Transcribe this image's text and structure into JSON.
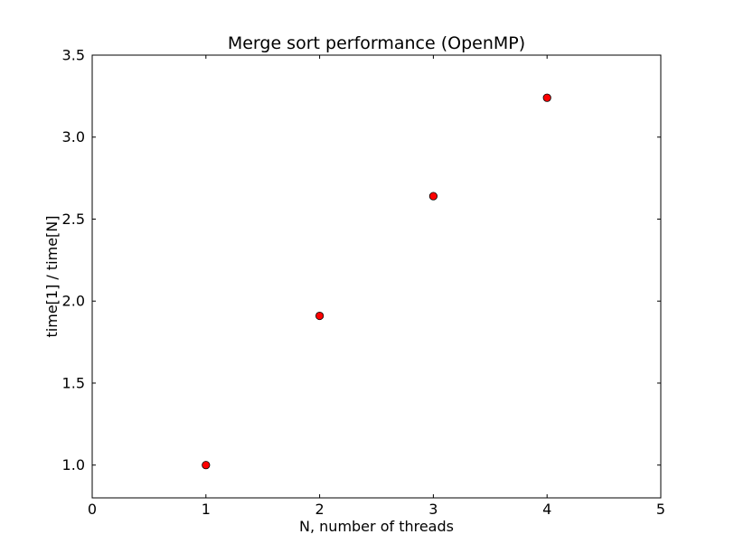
{
  "chart_data": {
    "type": "scatter",
    "title": "Merge sort performance (OpenMP)",
    "xlabel": "N, number of threads",
    "ylabel": "time[1] / time[N]",
    "xlim": [
      0,
      5
    ],
    "ylim": [
      0.8,
      3.5
    ],
    "xticks": [
      0,
      1,
      2,
      3,
      4,
      5
    ],
    "xtick_labels": [
      "0",
      "1",
      "2",
      "3",
      "4",
      "5"
    ],
    "yticks": [
      1.0,
      1.5,
      2.0,
      2.5,
      3.0,
      3.5
    ],
    "ytick_labels": [
      "1.0",
      "1.5",
      "2.0",
      "2.5",
      "3.0",
      "3.5"
    ],
    "grid": false,
    "legend": "none",
    "series": [
      {
        "x": [
          1,
          2,
          3,
          4
        ],
        "y": [
          1.0,
          1.91,
          2.64,
          3.24
        ],
        "marker_color": "#ff0000",
        "marker_edge": "#000000"
      }
    ]
  }
}
